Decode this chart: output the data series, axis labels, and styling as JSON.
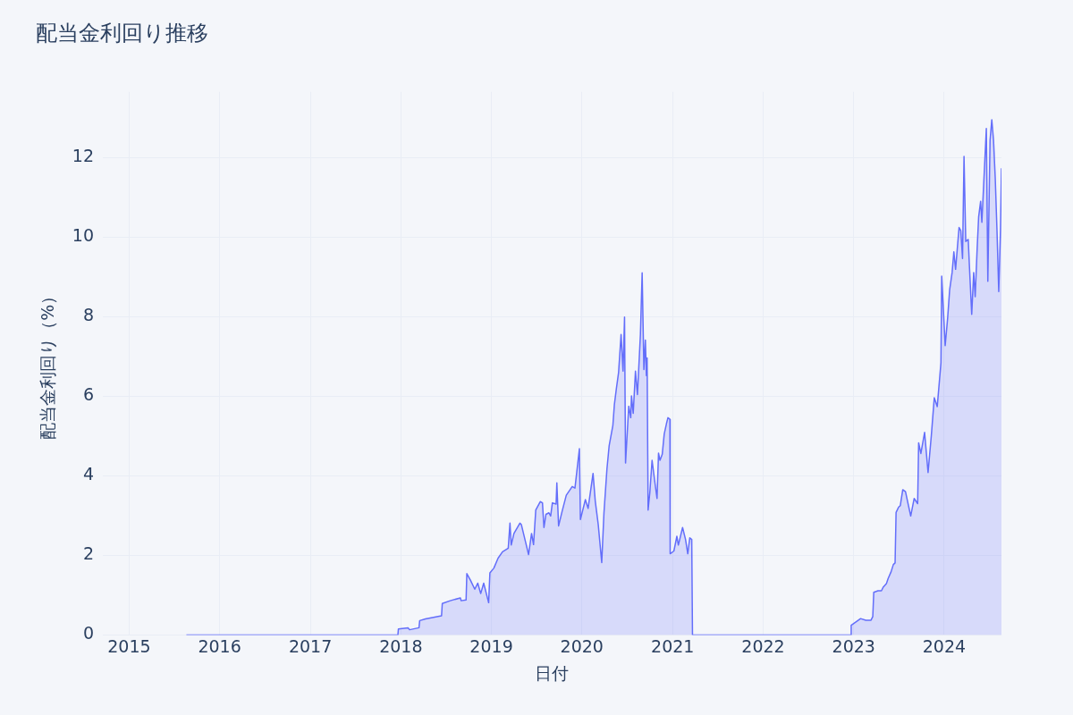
{
  "chart_data": {
    "type": "area",
    "title": "配当金利回り推移",
    "xlabel": "日付",
    "ylabel": "配当金利回り（%）",
    "xlim": [
      "2014-09-17",
      "2024-08-19"
    ],
    "ylim": [
      0,
      13.65
    ],
    "xticks": [
      {
        "value": "2015-01-01",
        "label": "2015"
      },
      {
        "value": "2016-01-01",
        "label": "2016"
      },
      {
        "value": "2017-01-01",
        "label": "2017"
      },
      {
        "value": "2018-01-01",
        "label": "2018"
      },
      {
        "value": "2019-01-01",
        "label": "2019"
      },
      {
        "value": "2020-01-01",
        "label": "2020"
      },
      {
        "value": "2021-01-01",
        "label": "2021"
      },
      {
        "value": "2022-01-01",
        "label": "2022"
      },
      {
        "value": "2023-01-01",
        "label": "2023"
      },
      {
        "value": "2024-01-01",
        "label": "2024"
      }
    ],
    "yticks": [
      0,
      2,
      4,
      6,
      8,
      10,
      12
    ],
    "grid": true,
    "legend": false,
    "marker": "none",
    "line_style": "solid",
    "series": [
      {
        "color": "#636efa",
        "x": [
          "2015-08-20",
          "2017-12-20",
          "2017-12-22",
          "2018-01-30",
          "2018-02-05",
          "2018-03-15",
          "2018-03-18",
          "2018-04-10",
          "2018-06-14",
          "2018-06-17",
          "2018-07-19",
          "2018-08-29",
          "2018-09-01",
          "2018-09-21",
          "2018-09-24",
          "2018-10-09",
          "2018-10-26",
          "2018-11-07",
          "2018-11-19",
          "2018-12-01",
          "2018-12-21",
          "2018-12-26",
          "2019-01-11",
          "2019-01-28",
          "2019-02-15",
          "2019-03-10",
          "2019-03-17",
          "2019-03-22",
          "2019-04-02",
          "2019-04-26",
          "2019-05-02",
          "2019-05-19",
          "2019-05-31",
          "2019-06-12",
          "2019-06-20",
          "2019-06-29",
          "2019-07-17",
          "2019-07-26",
          "2019-08-01",
          "2019-08-09",
          "2019-08-21",
          "2019-08-28",
          "2019-09-04",
          "2019-09-19",
          "2019-09-22",
          "2019-09-29",
          "2019-10-13",
          "2019-10-30",
          "2019-11-23",
          "2019-12-04",
          "2019-12-22",
          "2019-12-26",
          "2020-01-15",
          "2020-01-26",
          "2020-02-15",
          "2020-02-24",
          "2020-03-07",
          "2020-03-21",
          "2020-03-30",
          "2020-04-11",
          "2020-04-20",
          "2020-05-05",
          "2020-05-11",
          "2020-05-19",
          "2020-05-28",
          "2020-06-07",
          "2020-06-15",
          "2020-06-21",
          "2020-06-25",
          "2020-07-08",
          "2020-07-16",
          "2020-07-19",
          "2020-07-26",
          "2020-08-04",
          "2020-08-12",
          "2020-08-24",
          "2020-08-31",
          "2020-09-07",
          "2020-09-13",
          "2020-09-17",
          "2020-09-20",
          "2020-09-24",
          "2020-10-01",
          "2020-10-10",
          "2020-10-22",
          "2020-10-30",
          "2020-11-05",
          "2020-11-11",
          "2020-11-20",
          "2020-11-28",
          "2020-12-07",
          "2020-12-13",
          "2020-12-21",
          "2020-12-22",
          "2021-01-06",
          "2021-01-18",
          "2021-01-24",
          "2021-02-10",
          "2021-02-22",
          "2021-03-03",
          "2021-03-11",
          "2021-03-19",
          "2021-03-22",
          "2022-12-21",
          "2022-12-22",
          "2023-01-29",
          "2023-02-19",
          "2023-03-12",
          "2023-03-19",
          "2023-03-23",
          "2023-04-09",
          "2023-04-23",
          "2023-04-30",
          "2023-05-13",
          "2023-05-20",
          "2023-06-01",
          "2023-06-10",
          "2023-06-17",
          "2023-06-21",
          "2023-07-01",
          "2023-07-08",
          "2023-07-18",
          "2023-07-29",
          "2023-08-19",
          "2023-09-02",
          "2023-09-16",
          "2023-09-20",
          "2023-09-29",
          "2023-10-14",
          "2023-10-28",
          "2023-11-10",
          "2023-11-22",
          "2023-12-04",
          "2023-12-19",
          "2023-12-22",
          "2024-01-05",
          "2024-01-15",
          "2024-01-23",
          "2024-02-02",
          "2024-02-09",
          "2024-02-16",
          "2024-02-23",
          "2024-03-01",
          "2024-03-08",
          "2024-03-15",
          "2024-03-21",
          "2024-03-28",
          "2024-04-07",
          "2024-04-11",
          "2024-04-21",
          "2024-04-29",
          "2024-05-05",
          "2024-05-13",
          "2024-05-19",
          "2024-05-27",
          "2024-06-01",
          "2024-06-07",
          "2024-06-19",
          "2024-06-25",
          "2024-07-04",
          "2024-07-11",
          "2024-07-18",
          "2024-07-25",
          "2024-08-01",
          "2024-08-08",
          "2024-08-15",
          "2024-08-19"
        ],
        "values": [
          0,
          0,
          0.15,
          0.18,
          0.13,
          0.18,
          0.36,
          0.4,
          0.48,
          0.79,
          0.86,
          0.93,
          0.86,
          0.88,
          1.54,
          1.37,
          1.15,
          1.3,
          1.04,
          1.3,
          0.81,
          1.56,
          1.68,
          1.93,
          2.09,
          2.18,
          2.81,
          2.26,
          2.55,
          2.81,
          2.77,
          2.33,
          2.02,
          2.55,
          2.27,
          3.14,
          3.35,
          3.32,
          2.7,
          3.03,
          3.07,
          2.99,
          3.32,
          3.29,
          3.82,
          2.74,
          3.1,
          3.51,
          3.73,
          3.69,
          4.68,
          2.9,
          3.4,
          3.18,
          4.06,
          3.36,
          2.77,
          1.82,
          3.07,
          4.17,
          4.76,
          5.27,
          5.79,
          6.19,
          6.6,
          7.55,
          6.63,
          7.99,
          4.32,
          5.75,
          5.46,
          6.01,
          5.57,
          6.63,
          6.04,
          7.55,
          9.1,
          6.67,
          7.41,
          6.52,
          6.96,
          3.14,
          3.58,
          4.39,
          3.8,
          3.43,
          4.57,
          4.39,
          4.54,
          5.05,
          5.31,
          5.46,
          5.42,
          2.04,
          2.11,
          2.48,
          2.26,
          2.7,
          2.4,
          2.04,
          2.44,
          2.4,
          0,
          0,
          0.24,
          0.41,
          0.37,
          0.37,
          0.46,
          1.07,
          1.11,
          1.11,
          1.2,
          1.29,
          1.42,
          1.59,
          1.77,
          1.81,
          3.08,
          3.21,
          3.25,
          3.65,
          3.6,
          2.99,
          3.43,
          3.3,
          4.83,
          4.56,
          5.09,
          4.08,
          5.0,
          5.96,
          5.74,
          6.84,
          9.02,
          7.27,
          7.97,
          8.67,
          9.11,
          9.63,
          9.19,
          9.72,
          10.24,
          10.16,
          9.46,
          12.03,
          9.89,
          9.94,
          9.37,
          8.06,
          9.11,
          8.5,
          9.72,
          10.51,
          10.9,
          10.37,
          11.16,
          12.73,
          8.89,
          12.43,
          12.95,
          12.43,
          11.47,
          10.16,
          8.63,
          10.16,
          11.73
        ]
      }
    ]
  }
}
